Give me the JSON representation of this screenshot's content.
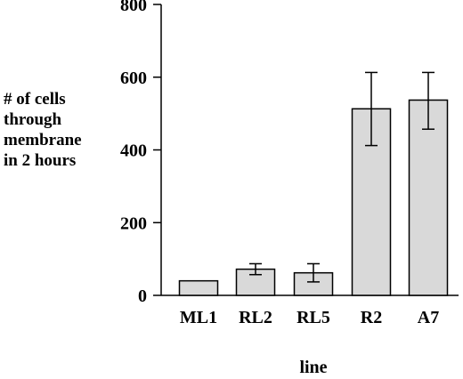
{
  "chart_data": {
    "type": "bar",
    "title": "",
    "xlabel": "line",
    "ylabel_lines": [
      "# of cells",
      "through",
      "membrane",
      "in 2 hours"
    ],
    "categories": [
      "ML1",
      "RL2",
      "RL5",
      "R2",
      "A7"
    ],
    "values": [
      40,
      72,
      62,
      513,
      537
    ],
    "error_high": [
      null,
      87,
      87,
      613,
      613
    ],
    "error_low": [
      null,
      57,
      37,
      412,
      457
    ],
    "ylim": [
      0,
      800
    ],
    "yticks": [
      0,
      200,
      400,
      600,
      800
    ],
    "ytick_labels": [
      "0",
      "200",
      "400",
      "600",
      "800"
    ],
    "grid": false,
    "colors": {
      "bar_fill": "#d9d9d9",
      "bar_stroke": "#000000",
      "axis": "#000000"
    }
  }
}
